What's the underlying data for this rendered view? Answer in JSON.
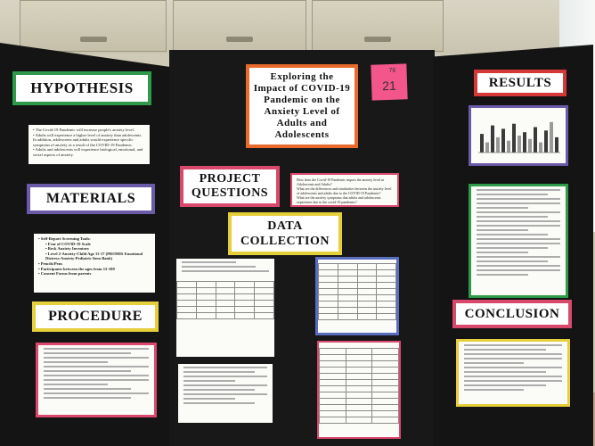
{
  "board": {
    "hypothesis_title": "HYPOTHESIS",
    "materials_title": "MATERIALS",
    "procedure_title": "PROCEDURE",
    "main_title": "Exploring the Impact of COVID-19 Pandemic on the Anxiety Level of Adults and Adolescents",
    "project_questions_title": "PROJECT QUESTIONS",
    "data_collection_title": "DATA COLLECTION",
    "results_title": "RESULTS",
    "conclusion_title": "CONCLUSION",
    "sticky_top": "76",
    "sticky_number": "21"
  },
  "hypothesis_items": [
    "The Covid-19 Pandemic will increase people's anxiety level.",
    "Adults will experience a higher level of anxiety than adolescents. In addition, adolescents and adults would experience specific symptoms of anxiety as a result of the COVID-19 Pandemic.",
    "Adults and adolescents will experience biological, emotional, and social aspects of anxiety."
  ],
  "materials_items": [
    "Self-Report Screening Tools:",
    "Fear of COVID-19 Scale",
    "Beck Anxiety Inventory",
    "Level 2-Anxiety-Child Age 11-17 (PROMIS Emotional Distress-Anxiety-Pediatric Item Bank)",
    "Pencils/Pens",
    "Participants between the ages from 12-100",
    "Consent Forms from parents"
  ],
  "questions_items": [
    "How does the Covid-19 Pandemic impact the anxiety level in Adolescents and Adults?",
    "What are the differences and similarities between the anxiety level of adolescents and adults due to the COVID-19 Pandemic?",
    "What are the anxiety symptoms that adults and adolescents experience due to the covid-19 pandemic?"
  ],
  "colors": {
    "board": "#141414",
    "green": "#2e9a4a",
    "purple": "#6a5aa8",
    "yellow": "#e5cf3a",
    "pink": "#d9486d",
    "orange": "#e86a2d",
    "sticky": "#f2568a"
  },
  "results_chart": {
    "bars": [
      0.55,
      0.3,
      0.8,
      0.45,
      0.7,
      0.35,
      0.85,
      0.5,
      0.6,
      0.4,
      0.75,
      0.3,
      0.65,
      0.9,
      0.45
    ]
  }
}
